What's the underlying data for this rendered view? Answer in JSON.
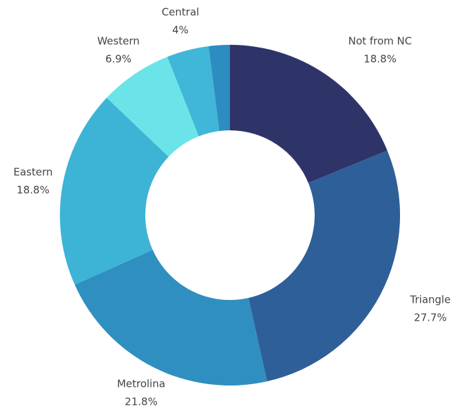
{
  "chart_data": {
    "type": "donut",
    "categories": [
      "Not from NC",
      "Triangle",
      "Metrolina",
      "Eastern",
      "Western",
      "Central",
      null
    ],
    "values": [
      18.8,
      27.7,
      21.8,
      18.8,
      6.9,
      4,
      2
    ],
    "value_labels": [
      "18.8%",
      "27.7%",
      "21.8%",
      "18.8%",
      "6.9%",
      "4%",
      null
    ],
    "colors": [
      "#2e3468",
      "#2e5f98",
      "#2f8fc0",
      "#3db4d6",
      "#6ae4e8",
      "#40b6d8",
      "#2d8cc0"
    ]
  }
}
